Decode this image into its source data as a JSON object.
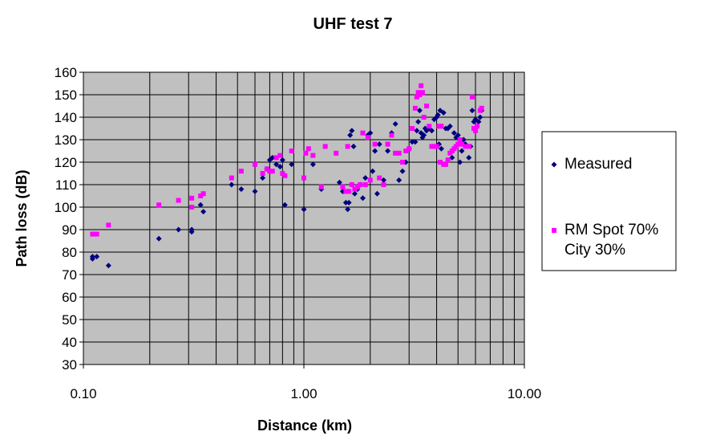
{
  "chart_data": {
    "type": "scatter",
    "title": "UHF test 7",
    "xlabel": "Distance (km)",
    "ylabel": "Path loss (dB)",
    "x_scale": "log",
    "xlim": [
      0.1,
      10
    ],
    "ylim": [
      30,
      160
    ],
    "x_tick_labels": [
      {
        "value": 0.1,
        "label": "0.10"
      },
      {
        "value": 1,
        "label": "1.00"
      },
      {
        "value": 10,
        "label": "10.00"
      }
    ],
    "y_ticks": [
      30,
      40,
      50,
      60,
      70,
      80,
      90,
      100,
      110,
      120,
      130,
      140,
      150,
      160
    ],
    "grid": true,
    "plot_background": "#c0c0c0",
    "legend_position": "right",
    "series": [
      {
        "name": "Measured",
        "marker": "diamond",
        "color": "#000080",
        "points": [
          [
            0.11,
            77
          ],
          [
            0.11,
            78
          ],
          [
            0.115,
            78
          ],
          [
            0.13,
            74
          ],
          [
            0.22,
            86
          ],
          [
            0.27,
            90
          ],
          [
            0.31,
            90
          ],
          [
            0.31,
            89
          ],
          [
            0.34,
            101
          ],
          [
            0.35,
            98
          ],
          [
            0.47,
            110
          ],
          [
            0.52,
            108
          ],
          [
            0.6,
            107
          ],
          [
            0.65,
            113
          ],
          [
            0.68,
            117
          ],
          [
            0.7,
            121
          ],
          [
            0.72,
            122
          ],
          [
            0.75,
            119
          ],
          [
            0.78,
            118
          ],
          [
            0.8,
            121
          ],
          [
            0.82,
            101
          ],
          [
            0.88,
            119
          ],
          [
            1.0,
            99
          ],
          [
            1.1,
            119
          ],
          [
            1.2,
            108
          ],
          [
            1.45,
            111
          ],
          [
            1.5,
            107
          ],
          [
            1.55,
            102
          ],
          [
            1.58,
            99
          ],
          [
            1.6,
            102
          ],
          [
            1.62,
            132
          ],
          [
            1.65,
            134
          ],
          [
            1.68,
            127
          ],
          [
            1.7,
            106
          ],
          [
            1.75,
            108
          ],
          [
            1.8,
            110
          ],
          [
            1.85,
            104
          ],
          [
            1.9,
            113
          ],
          [
            1.95,
            132
          ],
          [
            2.0,
            133
          ],
          [
            2.05,
            116
          ],
          [
            2.1,
            125
          ],
          [
            2.15,
            106
          ],
          [
            2.2,
            128
          ],
          [
            2.3,
            112
          ],
          [
            2.4,
            125
          ],
          [
            2.5,
            133
          ],
          [
            2.6,
            137
          ],
          [
            2.7,
            112
          ],
          [
            2.8,
            116
          ],
          [
            2.9,
            120
          ],
          [
            3.0,
            126
          ],
          [
            3.1,
            129
          ],
          [
            3.2,
            129
          ],
          [
            3.25,
            134
          ],
          [
            3.3,
            138
          ],
          [
            3.35,
            143
          ],
          [
            3.4,
            133
          ],
          [
            3.45,
            131
          ],
          [
            3.5,
            132
          ],
          [
            3.55,
            135
          ],
          [
            3.6,
            134
          ],
          [
            3.7,
            135
          ],
          [
            3.8,
            134
          ],
          [
            3.9,
            139
          ],
          [
            4.0,
            140
          ],
          [
            4.05,
            141
          ],
          [
            4.1,
            128
          ],
          [
            4.15,
            143
          ],
          [
            4.2,
            126
          ],
          [
            4.3,
            142
          ],
          [
            4.4,
            135
          ],
          [
            4.5,
            135
          ],
          [
            4.6,
            136
          ],
          [
            4.7,
            122
          ],
          [
            4.8,
            133
          ],
          [
            4.9,
            131
          ],
          [
            5.0,
            132
          ],
          [
            5.1,
            120
          ],
          [
            5.2,
            125
          ],
          [
            5.3,
            130
          ],
          [
            5.4,
            128
          ],
          [
            5.6,
            122
          ],
          [
            5.7,
            127
          ],
          [
            5.8,
            143
          ],
          [
            5.9,
            138
          ],
          [
            6.0,
            139
          ],
          [
            6.1,
            136
          ],
          [
            6.2,
            138
          ],
          [
            6.3,
            140
          ],
          [
            6.4,
            143
          ]
        ]
      },
      {
        "name": "RM Spot 70% City 30%",
        "legend_lines": [
          "RM Spot 70%",
          "City 30%"
        ],
        "marker": "square",
        "color": "#ff00ff",
        "points": [
          [
            0.11,
            88
          ],
          [
            0.115,
            88
          ],
          [
            0.13,
            92
          ],
          [
            0.22,
            101
          ],
          [
            0.27,
            103
          ],
          [
            0.31,
            100
          ],
          [
            0.31,
            104
          ],
          [
            0.34,
            105
          ],
          [
            0.35,
            106
          ],
          [
            0.47,
            113
          ],
          [
            0.52,
            116
          ],
          [
            0.6,
            119
          ],
          [
            0.65,
            115
          ],
          [
            0.68,
            117
          ],
          [
            0.7,
            116
          ],
          [
            0.72,
            116
          ],
          [
            0.75,
            122
          ],
          [
            0.78,
            123
          ],
          [
            0.8,
            115
          ],
          [
            0.82,
            114
          ],
          [
            0.88,
            125
          ],
          [
            1.0,
            113
          ],
          [
            1.02,
            124
          ],
          [
            1.05,
            126
          ],
          [
            1.1,
            123
          ],
          [
            1.2,
            109
          ],
          [
            1.25,
            127
          ],
          [
            1.4,
            124
          ],
          [
            1.5,
            109
          ],
          [
            1.55,
            107
          ],
          [
            1.58,
            127
          ],
          [
            1.6,
            107
          ],
          [
            1.65,
            110
          ],
          [
            1.7,
            108
          ],
          [
            1.75,
            109
          ],
          [
            1.8,
            110
          ],
          [
            1.85,
            133
          ],
          [
            1.9,
            110
          ],
          [
            1.95,
            131
          ],
          [
            2.0,
            112
          ],
          [
            2.1,
            128
          ],
          [
            2.2,
            113
          ],
          [
            2.3,
            110
          ],
          [
            2.4,
            128
          ],
          [
            2.5,
            132
          ],
          [
            2.6,
            124
          ],
          [
            2.7,
            124
          ],
          [
            2.8,
            120
          ],
          [
            2.9,
            125
          ],
          [
            3.0,
            126
          ],
          [
            3.1,
            135
          ],
          [
            3.2,
            144
          ],
          [
            3.25,
            149
          ],
          [
            3.3,
            151
          ],
          [
            3.35,
            150
          ],
          [
            3.4,
            154
          ],
          [
            3.45,
            151
          ],
          [
            3.5,
            140
          ],
          [
            3.6,
            145
          ],
          [
            3.7,
            136
          ],
          [
            3.8,
            127
          ],
          [
            3.9,
            127
          ],
          [
            4.0,
            127
          ],
          [
            4.1,
            136
          ],
          [
            4.15,
            120
          ],
          [
            4.2,
            136
          ],
          [
            4.3,
            119
          ],
          [
            4.4,
            119
          ],
          [
            4.5,
            121
          ],
          [
            4.6,
            124
          ],
          [
            4.7,
            125
          ],
          [
            4.8,
            126
          ],
          [
            4.9,
            127
          ],
          [
            5.0,
            128
          ],
          [
            5.1,
            130
          ],
          [
            5.2,
            128
          ],
          [
            5.4,
            127
          ],
          [
            5.6,
            127
          ],
          [
            5.8,
            149
          ],
          [
            5.9,
            135
          ],
          [
            6.0,
            134
          ],
          [
            6.1,
            136
          ],
          [
            6.3,
            143
          ],
          [
            6.4,
            144
          ]
        ]
      }
    ]
  }
}
